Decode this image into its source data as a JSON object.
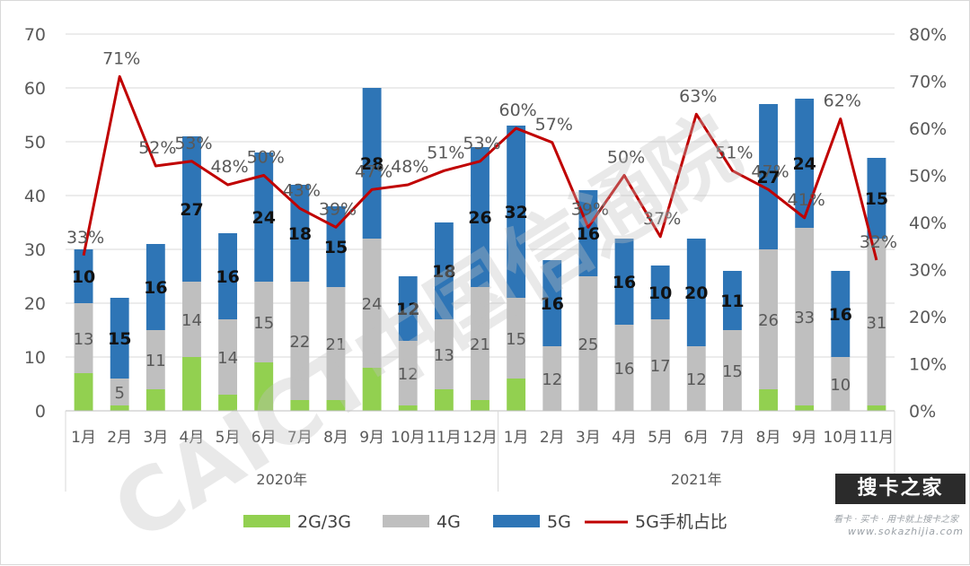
{
  "chart_data": {
    "type": "bar",
    "stacked": true,
    "categories": [
      "1月",
      "2月",
      "3月",
      "4月",
      "5月",
      "6月",
      "7月",
      "8月",
      "9月",
      "10月",
      "11月",
      "12月",
      "1月",
      "2月",
      "3月",
      "4月",
      "5月",
      "6月",
      "7月",
      "8月",
      "9月",
      "10月",
      "11月"
    ],
    "groups": [
      {
        "label": "2020年",
        "start": 0,
        "end": 11
      },
      {
        "label": "2021年",
        "start": 12,
        "end": 22
      }
    ],
    "series": [
      {
        "name": "2G/3G",
        "color": "#92d050",
        "axis": "left",
        "values": [
          7,
          1,
          4,
          10,
          3,
          9,
          2,
          2,
          8,
          1,
          4,
          2,
          6,
          0,
          0,
          0,
          0,
          0,
          0,
          4,
          1,
          0,
          1
        ]
      },
      {
        "name": "4G",
        "color": "#bfbfbf",
        "axis": "left",
        "values": [
          13,
          5,
          11,
          14,
          14,
          15,
          22,
          21,
          24,
          12,
          13,
          21,
          15,
          12,
          25,
          16,
          17,
          12,
          15,
          26,
          33,
          10,
          31
        ]
      },
      {
        "name": "5G",
        "color": "#2e75b6",
        "axis": "left",
        "values": [
          10,
          15,
          16,
          27,
          16,
          24,
          18,
          15,
          28,
          12,
          18,
          26,
          32,
          16,
          16,
          16,
          10,
          20,
          11,
          27,
          24,
          16,
          15
        ]
      },
      {
        "name": "5G手机占比",
        "type": "line",
        "color": "#c00000",
        "axis": "right",
        "values": [
          33,
          71,
          52,
          53,
          48,
          50,
          43,
          39,
          47,
          48,
          51,
          53,
          60,
          57,
          39,
          50,
          37,
          63,
          51,
          47,
          41,
          62,
          32
        ]
      }
    ],
    "segment_labels": {
      "2G/3G": [
        null,
        null,
        null,
        null,
        null,
        null,
        null,
        null,
        null,
        null,
        null,
        null,
        null,
        null,
        null,
        null,
        null,
        null,
        null,
        null,
        null,
        null,
        null
      ],
      "4G": [
        "13",
        "5",
        "11",
        "14",
        "14",
        "15",
        "22",
        "21",
        "24",
        "12",
        "13",
        "21",
        "15",
        "12",
        "25",
        "16",
        "17",
        "12",
        "15",
        "26",
        "33",
        "10",
        "31"
      ],
      "5G": [
        "10",
        "15",
        "16",
        "27",
        "16",
        "24",
        "18",
        "15",
        "28",
        "12",
        "18",
        "26",
        "32",
        "16",
        "16",
        "16",
        "10",
        "20",
        "11",
        "27",
        "24",
        "16",
        "15"
      ]
    },
    "line_labels": [
      "33%",
      "71%",
      "52%",
      "53%",
      "48%",
      "50%",
      "43%",
      "39%",
      "47%",
      "48%",
      "51%",
      "53%",
      "60%",
      "57%",
      "39%",
      "50%",
      "37%",
      "63%",
      "51%",
      "47%",
      "41%",
      "62%",
      "32%"
    ],
    "ylim_left": [
      0,
      70
    ],
    "yticks_left": [
      "0",
      "10",
      "20",
      "30",
      "40",
      "50",
      "60",
      "70"
    ],
    "ylim_right": [
      0,
      80
    ],
    "yticks_right": [
      "0%",
      "10%",
      "20%",
      "30%",
      "40%",
      "50%",
      "60%",
      "70%",
      "80%"
    ],
    "grid": true,
    "legend_position": "bottom"
  },
  "watermarks": {
    "center": "CAICT中国信通院",
    "brand": "搜卡之家",
    "tagline": "看卡 · 买卡 · 用卡就上搜卡之家",
    "url": "www.sokazhijia.com"
  }
}
